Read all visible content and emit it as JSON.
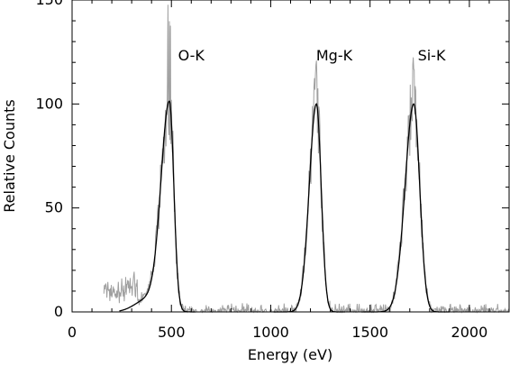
{
  "chart_data": {
    "type": "line",
    "xlabel": "Energy (eV)",
    "ylabel": "Relative Counts",
    "xlim": [
      0,
      2200
    ],
    "ylim": [
      0,
      150
    ],
    "x_ticks": [
      0,
      500,
      1000,
      1500,
      2000
    ],
    "y_ticks": [
      0,
      50,
      100,
      150
    ],
    "x_tick_labels": [
      "0",
      "500",
      "1000",
      "1500",
      "2000"
    ],
    "y_tick_labels": [
      "0",
      "50",
      "100",
      "150"
    ],
    "grid": false,
    "annotations": [
      {
        "text": "O-K",
        "x": 600,
        "y": 121
      },
      {
        "text": "Mg-K",
        "x": 1320,
        "y": 121
      },
      {
        "text": "Si-K",
        "x": 1810,
        "y": 121
      }
    ],
    "series": [
      {
        "role": "measured spectrum",
        "color": "#a0a0a0",
        "x_range": [
          160,
          2200
        ],
        "peaks": [
          {
            "label": "O-K",
            "center": 490,
            "max": 152
          },
          {
            "label": "Mg-K",
            "center": 1230,
            "max": 125
          },
          {
            "label": "Si-K",
            "center": 1720,
            "max": 129
          }
        ]
      },
      {
        "role": "fitted model",
        "color": "#000000",
        "peaks": [
          {
            "label": "O-K",
            "center": 490,
            "height": 100
          },
          {
            "label": "Mg-K",
            "center": 1230,
            "height": 100
          },
          {
            "label": "Si-K",
            "center": 1720,
            "height": 100
          }
        ]
      }
    ]
  }
}
